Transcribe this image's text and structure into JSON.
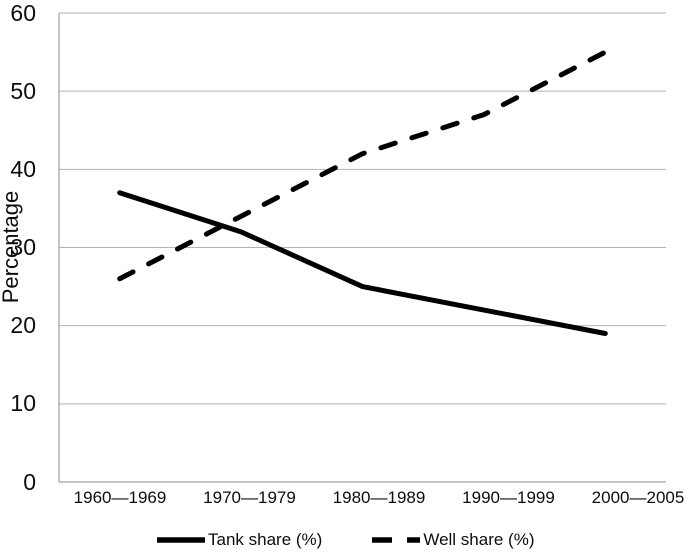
{
  "chart_data": {
    "type": "line",
    "title": "",
    "categories": [
      "1960—1969",
      "1970—1979",
      "1980—1989",
      "1990—1999",
      "2000—2005"
    ],
    "series": [
      {
        "name": "Tank share (%)",
        "style": "solid",
        "values": [
          37,
          32,
          25,
          22,
          19
        ]
      },
      {
        "name": "Well share (%)",
        "style": "dashed",
        "values": [
          26,
          34,
          42,
          47,
          55
        ]
      }
    ],
    "xlabel": "",
    "ylabel": "Percentage",
    "ylim": [
      0,
      60
    ],
    "yticks": [
      0,
      10,
      20,
      30,
      40,
      50,
      60
    ],
    "grid": "horizontal",
    "legend_position": "bottom-center",
    "colors": {
      "line": "#000000",
      "grid": "#b3b3b3",
      "axis": "#8c8c8c",
      "text": "#0d0d0d",
      "background": "#ffffff"
    }
  }
}
